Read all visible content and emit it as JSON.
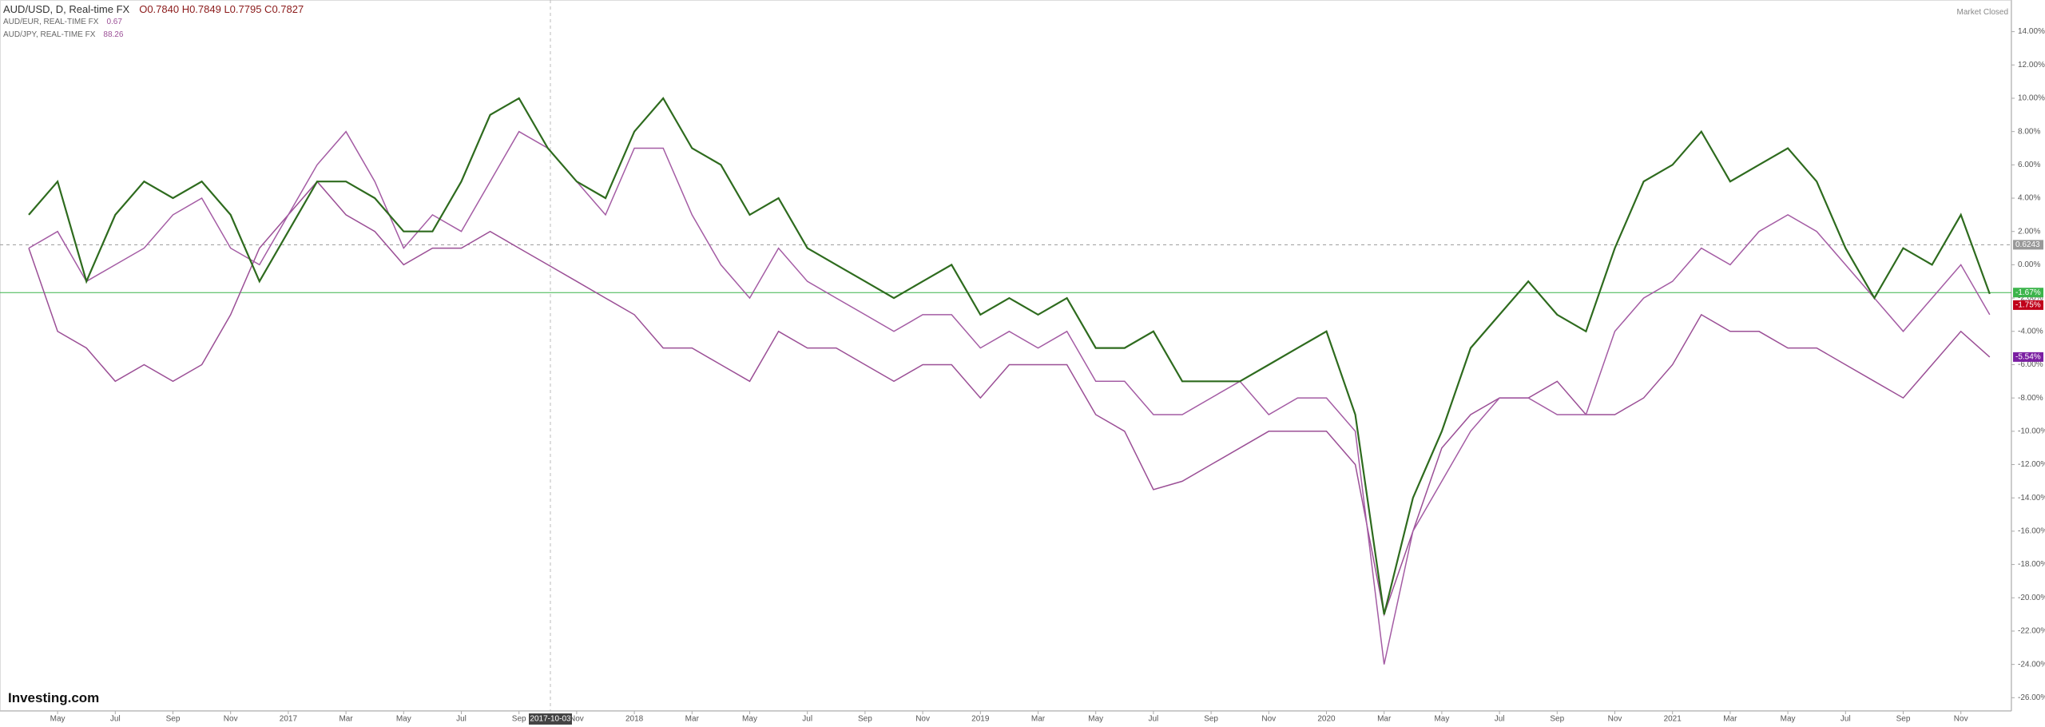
{
  "chart_data": {
    "type": "line",
    "title": "AUD/USD, D, Real-time FX",
    "ohlc_text": "O0.7840 H0.7849 L0.7795 C0.7827",
    "status": "Market Closed",
    "brand": "Investing.com",
    "crosshair_label": "2017-10-03",
    "categories": [
      null,
      "May",
      null,
      "Jul",
      null,
      "Sep",
      null,
      "Nov",
      null,
      "2017",
      null,
      "Mar",
      null,
      "May",
      null,
      "Jul",
      null,
      "Sep",
      null,
      "Nov",
      null,
      "2018",
      null,
      "Mar",
      null,
      "May",
      null,
      "Jul",
      null,
      "Sep",
      null,
      "Nov",
      null,
      "2019",
      null,
      "Mar",
      null,
      "May",
      null,
      "Jul",
      null,
      "Sep",
      null,
      "Nov",
      null,
      "2020",
      null,
      "Mar",
      null,
      "May",
      null,
      "Jul",
      null,
      "Sep",
      null,
      "Nov",
      null,
      "2021",
      null,
      "Mar",
      null,
      "May",
      null,
      "Jul",
      null,
      "Sep",
      null,
      "Nov",
      null
    ],
    "series": [
      {
        "name": "AUD/USD, D, Real-time FX",
        "color": "#2e6b1e",
        "values": [
          3,
          5,
          -1,
          3,
          5,
          4,
          5,
          3,
          -1,
          2,
          5,
          5,
          4,
          2,
          2,
          5,
          9,
          10,
          7,
          5,
          4,
          8,
          10,
          7,
          6,
          3,
          4,
          1,
          0,
          -1,
          -2,
          -1,
          0,
          -3,
          -2,
          -3,
          -2,
          -5,
          -5,
          -4,
          -7,
          -7,
          -7,
          -6,
          -5,
          -4,
          -9,
          -21,
          -14,
          -10,
          -5,
          -3,
          -1,
          -3,
          -4,
          1,
          5,
          6,
          8,
          5,
          6,
          7,
          5,
          1,
          -2,
          1,
          0,
          3,
          -1.75
        ]
      },
      {
        "name": "AUD/EUR, REAL-TIME FX",
        "color": "#a45ca4",
        "last": "0.67",
        "values": [
          1,
          2,
          -1,
          0,
          1,
          3,
          4,
          1,
          0,
          3,
          6,
          8,
          5,
          1,
          3,
          2,
          5,
          8,
          7,
          5,
          3,
          7,
          7,
          3,
          0,
          -2,
          1,
          -1,
          -2,
          -3,
          -4,
          -3,
          -3,
          -5,
          -4,
          -5,
          -4,
          -7,
          -7,
          -9,
          -9,
          -8,
          -7,
          -9,
          -8,
          -8,
          -10,
          -24,
          -16,
          -13,
          -10,
          -8,
          -8,
          -9,
          -9,
          -4,
          -2,
          -1,
          1,
          0,
          2,
          3,
          2,
          0,
          -2,
          -4,
          -2,
          0,
          -3
        ]
      },
      {
        "name": "AUD/JPY, REAL-TIME FX",
        "color": "#9b4f96",
        "last": "88.26",
        "values": [
          1,
          -4,
          -5,
          -7,
          -6,
          -7,
          -6,
          -3,
          1,
          3,
          5,
          3,
          2,
          0,
          1,
          1,
          2,
          1,
          0,
          -1,
          -2,
          -3,
          -5,
          -5,
          -6,
          -7,
          -4,
          -5,
          -5,
          -6,
          -7,
          -6,
          -6,
          -8,
          -6,
          -6,
          -6,
          -9,
          -10,
          -13.5,
          -13,
          -12,
          -11,
          -10,
          -10,
          -10,
          -12,
          -21,
          -16,
          -11,
          -9,
          -8,
          -8,
          -7,
          -9,
          -9,
          -8,
          -6,
          -3,
          -4,
          -4,
          -5,
          -5,
          -6,
          -7,
          -8,
          -6,
          -4,
          -5.54
        ]
      }
    ],
    "annotations": [
      {
        "value": 1.2,
        "label": "0.6243",
        "color": "#999999"
      },
      {
        "value": -1.67,
        "label": "-1.67%",
        "color": "#3cb44b"
      },
      {
        "value": -1.75,
        "label": "-1.75%",
        "color": "#c0001a"
      },
      {
        "value": -5.54,
        "label": "-5.54%",
        "color": "#7b1fa2"
      }
    ],
    "ylim": [
      -26.8,
      15.9
    ],
    "yticks": [
      {
        "value": 14,
        "label": "14.00%"
      },
      {
        "value": 12,
        "label": "12.00%"
      },
      {
        "value": 10,
        "label": "10.00%"
      },
      {
        "value": 8,
        "label": "8.00%"
      },
      {
        "value": 6,
        "label": "6.00%"
      },
      {
        "value": 4,
        "label": "4.00%"
      },
      {
        "value": 2,
        "label": "2.00%"
      },
      {
        "value": 0,
        "label": "0.00%"
      },
      {
        "value": -2,
        "label": "-2.00%"
      },
      {
        "value": -4,
        "label": "-4.00%"
      },
      {
        "value": -6,
        "label": "-6.00%"
      },
      {
        "value": -8,
        "label": "-8.00%"
      },
      {
        "value": -10,
        "label": "-10.00%"
      },
      {
        "value": -12,
        "label": "-12.00%"
      },
      {
        "value": -14,
        "label": "-14.00%"
      },
      {
        "value": -16,
        "label": "-16.00%"
      },
      {
        "value": -18,
        "label": "-18.00%"
      },
      {
        "value": -20,
        "label": "-20.00%"
      },
      {
        "value": -22,
        "label": "-22.00%"
      },
      {
        "value": -24,
        "label": "-24.00%"
      },
      {
        "value": -26,
        "label": "-26.00%"
      }
    ],
    "grid": false
  }
}
